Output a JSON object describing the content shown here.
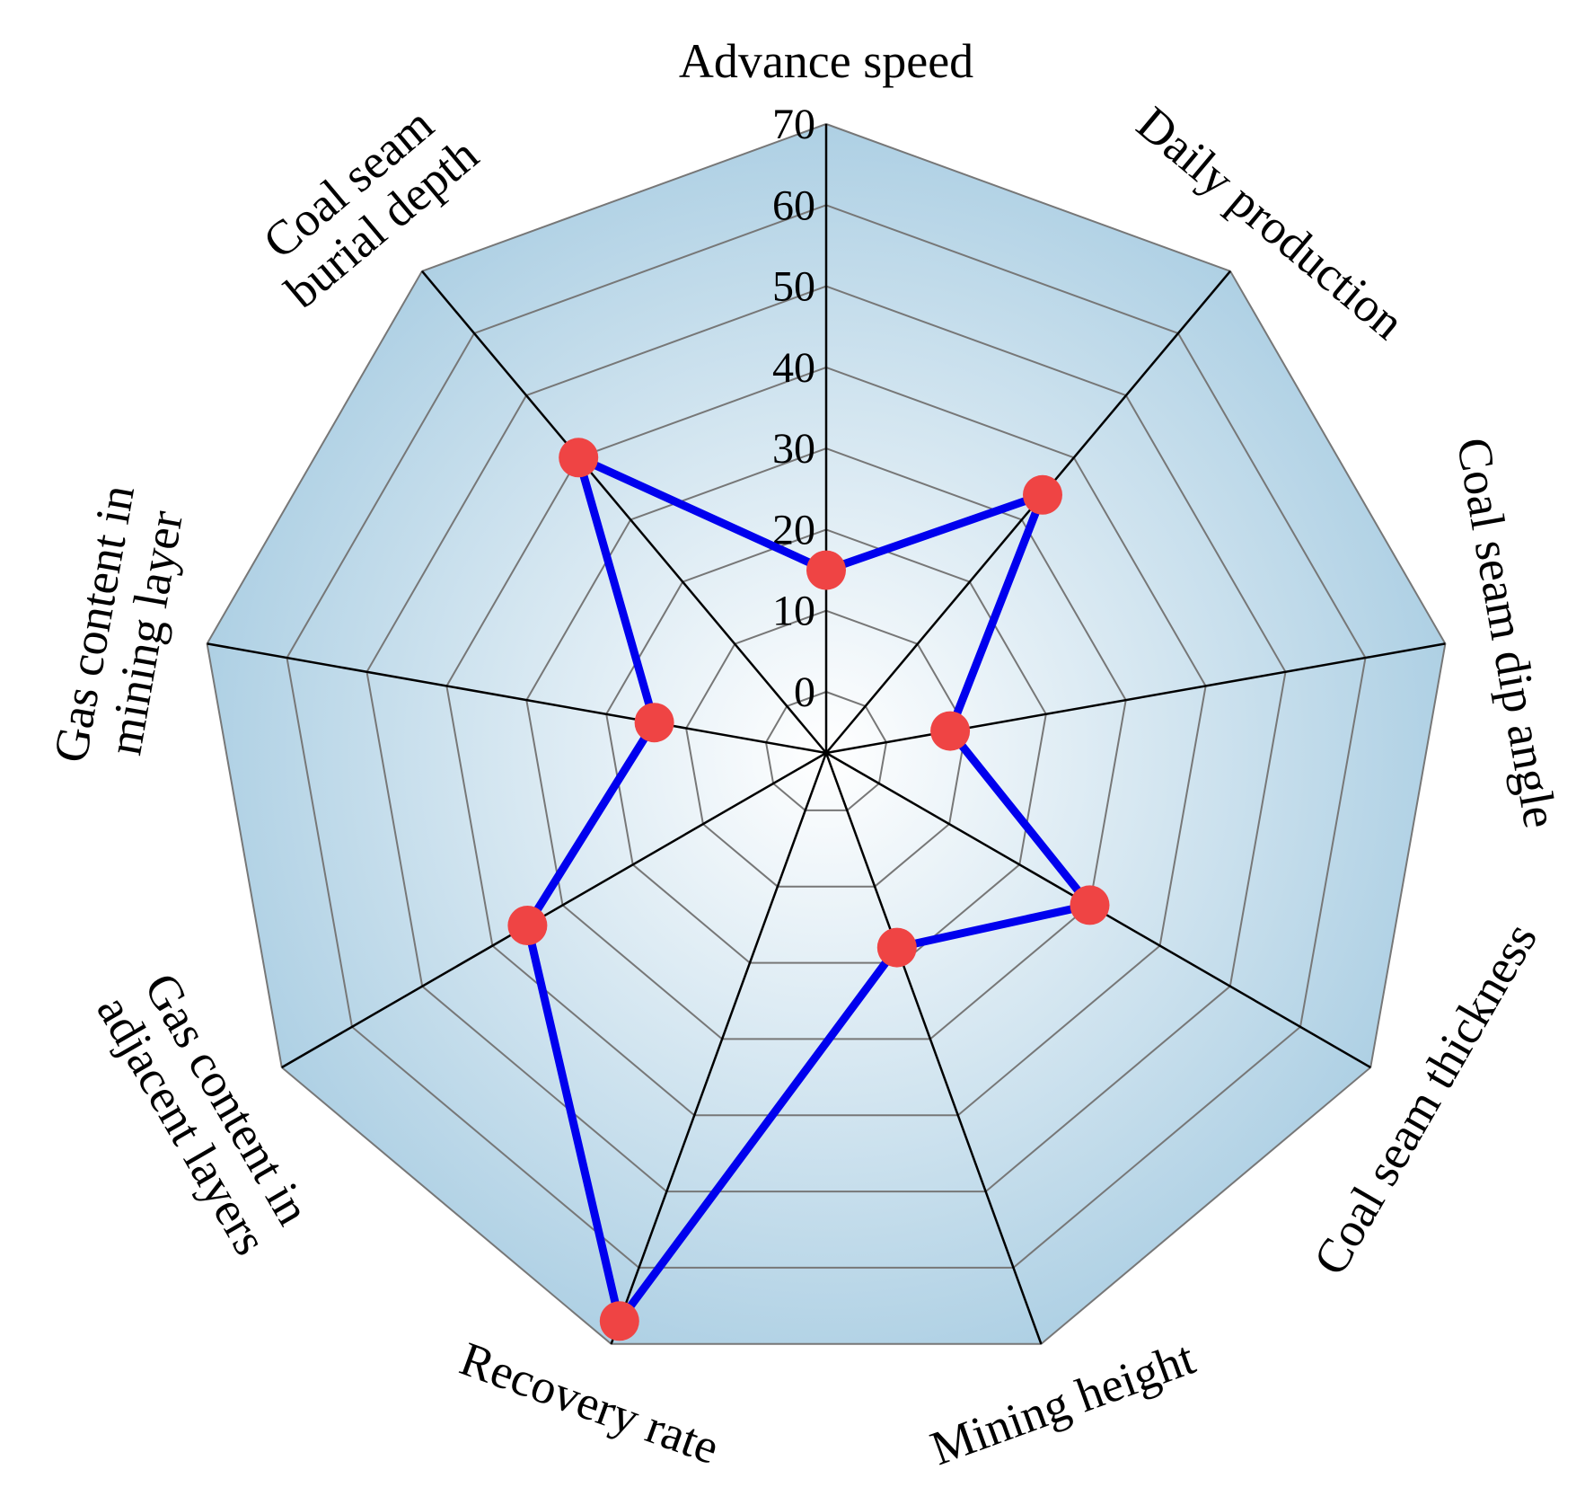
{
  "chart_data": {
    "type": "radar",
    "title": "",
    "axes": [
      "Advance speed",
      "Daily production",
      "Coal seam dip angle",
      "Coal seam thickness",
      "Mining height",
      "Recovery rate",
      "Gas content in adjacent layers",
      "Gas content in mining layer",
      "Coal seam burial depth"
    ],
    "axis_label_lines": [
      [
        "Advance speed"
      ],
      [
        "Daily production"
      ],
      [
        "Coal seam dip angle"
      ],
      [
        "Coal seam thickness"
      ],
      [
        "Mining height"
      ],
      [
        "Recovery rate"
      ],
      [
        "Gas content in",
        "adjacent layers"
      ],
      [
        "Gas content in",
        "mining layer"
      ],
      [
        "Coal seam",
        "burial depth"
      ]
    ],
    "axis_order_note_removed": true,
    "rlim": [
      0,
      70
    ],
    "rmin_offset": 0,
    "ticks": [
      "0",
      "10",
      "20",
      "30",
      "40",
      "50",
      "60",
      "70"
    ],
    "tick_values": [
      0,
      10,
      20,
      30,
      40,
      50,
      60,
      70
    ],
    "series": [
      {
        "values": [
          15,
          34,
          8,
          30,
          18,
          67,
          35,
          14,
          40
        ],
        "line_color": "#0000ee",
        "marker_color": "#ef4444"
      }
    ],
    "grid": true,
    "background_outer": "#aed0e4",
    "background_inner": "#ffffff",
    "grid_color": "#777777",
    "spoke_color": "#000000"
  }
}
